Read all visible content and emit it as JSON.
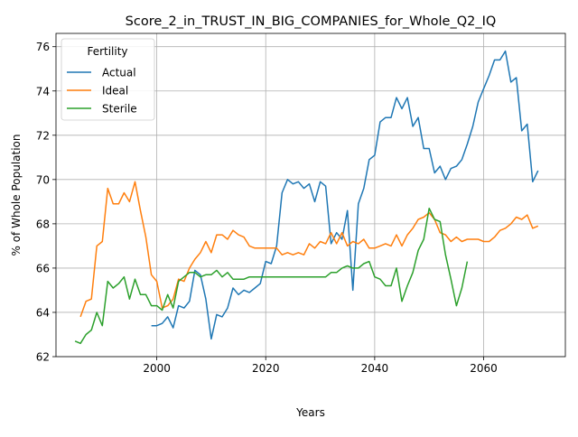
{
  "chart_data": {
    "type": "line",
    "title": "Score_2_in_TRUST_IN_BIG_COMPANIES_for_Whole_Q2_IQ",
    "xlabel": "Years",
    "ylabel": "% of Whole Population",
    "xlim": [
      1981.5,
      2075
    ],
    "ylim": [
      62.0,
      76.6
    ],
    "xticks": [
      2000,
      2020,
      2040,
      2060
    ],
    "yticks": [
      62,
      64,
      66,
      68,
      70,
      72,
      74,
      76
    ],
    "grid": true,
    "legend": {
      "title": "Fertility",
      "placement": "top-left"
    },
    "series": [
      {
        "name": "Actual",
        "color": "#1f77b4",
        "points": [
          [
            1999,
            63.4
          ],
          [
            2000,
            63.4
          ],
          [
            2001,
            63.5
          ],
          [
            2002,
            63.8
          ],
          [
            2003,
            63.3
          ],
          [
            2004,
            64.3
          ],
          [
            2005,
            64.2
          ],
          [
            2006,
            64.5
          ],
          [
            2007,
            65.9
          ],
          [
            2008,
            65.7
          ],
          [
            2009,
            64.6
          ],
          [
            2010,
            62.8
          ],
          [
            2011,
            63.9
          ],
          [
            2012,
            63.8
          ],
          [
            2013,
            64.2
          ],
          [
            2014,
            65.1
          ],
          [
            2015,
            64.8
          ],
          [
            2016,
            65.0
          ],
          [
            2017,
            64.9
          ],
          [
            2018,
            65.1
          ],
          [
            2019,
            65.3
          ],
          [
            2020,
            66.3
          ],
          [
            2021,
            66.2
          ],
          [
            2022,
            67.0
          ],
          [
            2023,
            69.4
          ],
          [
            2024,
            70.0
          ],
          [
            2025,
            69.8
          ],
          [
            2026,
            69.9
          ],
          [
            2027,
            69.6
          ],
          [
            2028,
            69.8
          ],
          [
            2029,
            69.0
          ],
          [
            2030,
            69.9
          ],
          [
            2031,
            69.7
          ],
          [
            2032,
            67.1
          ],
          [
            2033,
            67.6
          ],
          [
            2034,
            67.3
          ],
          [
            2035,
            68.6
          ],
          [
            2036,
            65.0
          ],
          [
            2037,
            68.9
          ],
          [
            2038,
            69.6
          ],
          [
            2039,
            70.9
          ],
          [
            2040,
            71.1
          ],
          [
            2041,
            72.6
          ],
          [
            2042,
            72.8
          ],
          [
            2043,
            72.8
          ],
          [
            2044,
            73.7
          ],
          [
            2045,
            73.2
          ],
          [
            2046,
            73.7
          ],
          [
            2047,
            72.4
          ],
          [
            2048,
            72.8
          ],
          [
            2049,
            71.4
          ],
          [
            2050,
            71.4
          ],
          [
            2051,
            70.3
          ],
          [
            2052,
            70.6
          ],
          [
            2053,
            70.0
          ],
          [
            2054,
            70.5
          ],
          [
            2055,
            70.6
          ],
          [
            2056,
            70.9
          ],
          [
            2057,
            71.6
          ],
          [
            2058,
            72.4
          ],
          [
            2059,
            73.5
          ],
          [
            2060,
            74.1
          ],
          [
            2061,
            74.7
          ],
          [
            2062,
            75.4
          ],
          [
            2063,
            75.4
          ],
          [
            2064,
            75.8
          ],
          [
            2065,
            74.4
          ],
          [
            2066,
            74.6
          ],
          [
            2067,
            72.2
          ],
          [
            2068,
            72.5
          ],
          [
            2069,
            69.9
          ],
          [
            2070,
            70.4
          ]
        ]
      },
      {
        "name": "Ideal",
        "color": "#ff7f0e",
        "points": [
          [
            1986,
            63.8
          ],
          [
            1987,
            64.5
          ],
          [
            1988,
            64.6
          ],
          [
            1989,
            67.0
          ],
          [
            1990,
            67.2
          ],
          [
            1991,
            69.6
          ],
          [
            1992,
            68.9
          ],
          [
            1993,
            68.9
          ],
          [
            1994,
            69.4
          ],
          [
            1995,
            69.0
          ],
          [
            1996,
            69.9
          ],
          [
            1997,
            68.6
          ],
          [
            1998,
            67.4
          ],
          [
            1999,
            65.7
          ],
          [
            2000,
            65.4
          ],
          [
            2001,
            64.2
          ],
          [
            2002,
            64.3
          ],
          [
            2003,
            64.6
          ],
          [
            2004,
            65.5
          ],
          [
            2005,
            65.4
          ],
          [
            2006,
            66.0
          ],
          [
            2007,
            66.4
          ],
          [
            2008,
            66.7
          ],
          [
            2009,
            67.2
          ],
          [
            2010,
            66.7
          ],
          [
            2011,
            67.5
          ],
          [
            2012,
            67.5
          ],
          [
            2013,
            67.3
          ],
          [
            2014,
            67.7
          ],
          [
            2015,
            67.5
          ],
          [
            2016,
            67.4
          ],
          [
            2017,
            67.0
          ],
          [
            2018,
            66.9
          ],
          [
            2019,
            66.9
          ],
          [
            2020,
            66.9
          ],
          [
            2021,
            66.9
          ],
          [
            2022,
            66.9
          ],
          [
            2023,
            66.6
          ],
          [
            2024,
            66.7
          ],
          [
            2025,
            66.6
          ],
          [
            2026,
            66.7
          ],
          [
            2027,
            66.6
          ],
          [
            2028,
            67.1
          ],
          [
            2029,
            66.9
          ],
          [
            2030,
            67.2
          ],
          [
            2031,
            67.1
          ],
          [
            2032,
            67.6
          ],
          [
            2033,
            67.1
          ],
          [
            2034,
            67.6
          ],
          [
            2035,
            67.0
          ],
          [
            2036,
            67.2
          ],
          [
            2037,
            67.1
          ],
          [
            2038,
            67.3
          ],
          [
            2039,
            66.9
          ],
          [
            2040,
            66.9
          ],
          [
            2041,
            67.0
          ],
          [
            2042,
            67.1
          ],
          [
            2043,
            67.0
          ],
          [
            2044,
            67.5
          ],
          [
            2045,
            67.0
          ],
          [
            2046,
            67.5
          ],
          [
            2047,
            67.8
          ],
          [
            2048,
            68.2
          ],
          [
            2049,
            68.3
          ],
          [
            2050,
            68.5
          ],
          [
            2051,
            68.2
          ],
          [
            2052,
            67.6
          ],
          [
            2053,
            67.5
          ],
          [
            2054,
            67.2
          ],
          [
            2055,
            67.4
          ],
          [
            2056,
            67.2
          ],
          [
            2057,
            67.3
          ],
          [
            2058,
            67.3
          ],
          [
            2059,
            67.3
          ],
          [
            2060,
            67.2
          ],
          [
            2061,
            67.2
          ],
          [
            2062,
            67.4
          ],
          [
            2063,
            67.7
          ],
          [
            2064,
            67.8
          ],
          [
            2065,
            68.0
          ],
          [
            2066,
            68.3
          ],
          [
            2067,
            68.2
          ],
          [
            2068,
            68.4
          ],
          [
            2069,
            67.8
          ],
          [
            2070,
            67.9
          ]
        ]
      },
      {
        "name": "Sterile",
        "color": "#2ca02c",
        "points": [
          [
            1985,
            62.7
          ],
          [
            1986,
            62.6
          ],
          [
            1987,
            63.0
          ],
          [
            1988,
            63.2
          ],
          [
            1989,
            64.0
          ],
          [
            1990,
            63.4
          ],
          [
            1991,
            65.4
          ],
          [
            1992,
            65.1
          ],
          [
            1993,
            65.3
          ],
          [
            1994,
            65.6
          ],
          [
            1995,
            64.6
          ],
          [
            1996,
            65.5
          ],
          [
            1997,
            64.8
          ],
          [
            1998,
            64.8
          ],
          [
            1999,
            64.3
          ],
          [
            2000,
            64.3
          ],
          [
            2001,
            64.1
          ],
          [
            2002,
            64.8
          ],
          [
            2003,
            64.2
          ],
          [
            2004,
            65.4
          ],
          [
            2005,
            65.6
          ],
          [
            2006,
            65.8
          ],
          [
            2007,
            65.8
          ],
          [
            2008,
            65.6
          ],
          [
            2009,
            65.7
          ],
          [
            2010,
            65.7
          ],
          [
            2011,
            65.9
          ],
          [
            2012,
            65.6
          ],
          [
            2013,
            65.8
          ],
          [
            2014,
            65.5
          ],
          [
            2015,
            65.5
          ],
          [
            2016,
            65.5
          ],
          [
            2017,
            65.6
          ],
          [
            2018,
            65.6
          ],
          [
            2019,
            65.6
          ],
          [
            2020,
            65.6
          ],
          [
            2021,
            65.6
          ],
          [
            2022,
            65.6
          ],
          [
            2023,
            65.6
          ],
          [
            2024,
            65.6
          ],
          [
            2025,
            65.6
          ],
          [
            2026,
            65.6
          ],
          [
            2027,
            65.6
          ],
          [
            2028,
            65.6
          ],
          [
            2029,
            65.6
          ],
          [
            2030,
            65.6
          ],
          [
            2031,
            65.6
          ],
          [
            2032,
            65.8
          ],
          [
            2033,
            65.8
          ],
          [
            2034,
            66.0
          ],
          [
            2035,
            66.1
          ],
          [
            2036,
            66.0
          ],
          [
            2037,
            66.0
          ],
          [
            2038,
            66.2
          ],
          [
            2039,
            66.3
          ],
          [
            2040,
            65.6
          ],
          [
            2041,
            65.5
          ],
          [
            2042,
            65.2
          ],
          [
            2043,
            65.2
          ],
          [
            2044,
            66.0
          ],
          [
            2045,
            64.5
          ],
          [
            2046,
            65.2
          ],
          [
            2047,
            65.8
          ],
          [
            2048,
            66.8
          ],
          [
            2049,
            67.3
          ],
          [
            2050,
            68.7
          ],
          [
            2051,
            68.2
          ],
          [
            2052,
            68.1
          ],
          [
            2053,
            66.6
          ],
          [
            2054,
            65.5
          ],
          [
            2055,
            64.3
          ],
          [
            2056,
            65.1
          ],
          [
            2057,
            66.3
          ]
        ]
      }
    ]
  }
}
